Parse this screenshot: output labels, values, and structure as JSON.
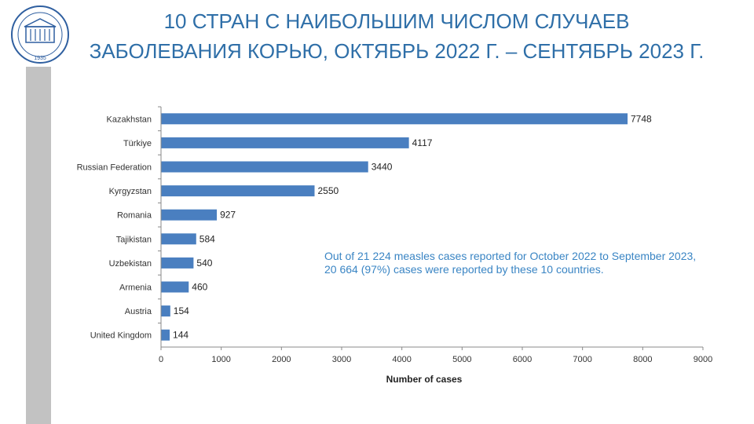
{
  "header": {
    "title_line1": "10 СТРАН С НАИБОЛЬШИМ ЧИСЛОМ СЛУЧАЕВ",
    "title_line2": "ЗАБОЛЕВАНИЯ КОРЬЮ, ОКТЯБРЬ 2022 Г. – СЕНТЯБРЬ 2023 Г."
  },
  "logo": {
    "year": "1935"
  },
  "note": "Out of 21 224 measles cases reported for October 2022 to September 2023, 20 664 (97%) cases were reported by these 10 countries.",
  "colors": {
    "title": "#2f6fa8",
    "bar": "#4a7fc0",
    "note": "#3a85c4",
    "sidebar": "#c2c2c2"
  },
  "chart_data": {
    "type": "bar",
    "orientation": "horizontal",
    "categories": [
      "Kazakhstan",
      "Türkiye",
      "Russian Federation",
      "Kyrgyzstan",
      "Romania",
      "Tajikistan",
      "Uzbekistan",
      "Armenia",
      "Austria",
      "United Kingdom"
    ],
    "values": [
      7748,
      4117,
      3440,
      2550,
      927,
      584,
      540,
      460,
      154,
      144
    ],
    "xlabel": "Number of cases",
    "ylabel": "",
    "xlim": [
      0,
      9000
    ],
    "xticks": [
      0,
      1000,
      2000,
      3000,
      4000,
      5000,
      6000,
      7000,
      8000,
      9000
    ],
    "grid": false,
    "legend": "none"
  }
}
